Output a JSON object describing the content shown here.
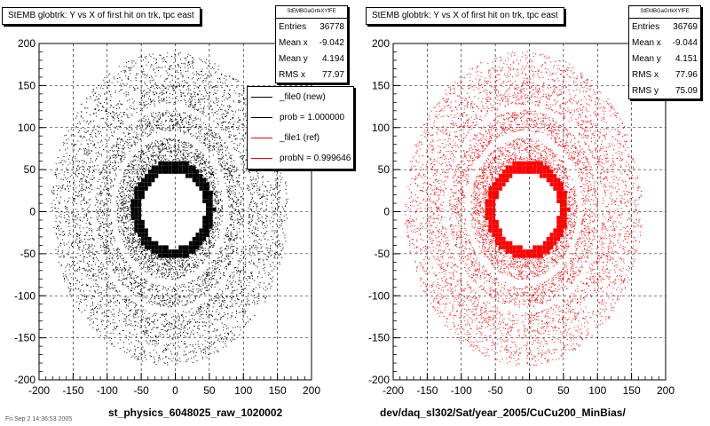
{
  "chart_data": [
    {
      "type": "scatter",
      "title": "StEMB globtrk: Y vs X of first hit on trk, tpc east",
      "xlabel": "st_physics_6048025_raw_1020002",
      "ylabel": "",
      "xlim": [
        -200,
        200
      ],
      "ylim": [
        -200,
        200
      ],
      "xticks": [
        "-200",
        "-150",
        "-100",
        "-50",
        "0",
        "50",
        "100",
        "150",
        "200"
      ],
      "yticks": [
        "200",
        "150",
        "100",
        "50",
        "0",
        "-50",
        "-100",
        "-150",
        "-200"
      ],
      "grid": true,
      "color": "#000000",
      "stats": {
        "header": "StEMBGaGrtkXYfFE",
        "rows": [
          {
            "label": "Entries",
            "value": "36778"
          },
          {
            "label": "Mean x",
            "value": "-9.042"
          },
          {
            "label": "Mean y",
            "value": "4.194"
          },
          {
            "label": "RMS x",
            "value": "77.97"
          }
        ]
      },
      "legend": [
        {
          "label": "_file0 (new)",
          "color": "#000000"
        },
        {
          "label": "prob = 1.000000",
          "color": "#000000"
        },
        {
          "label": "_file1 (ref)",
          "color": "#ff0000"
        },
        {
          "label": "probN = 0.999646",
          "color": "#ff0000"
        }
      ],
      "inner_ring": {
        "x_range": [
          -65,
          60
        ],
        "y_range": [
          -65,
          60
        ],
        "hole_radius": 45
      }
    },
    {
      "type": "scatter",
      "title": "StEMB globtrk: Y vs X of first hit on trk, tpc east",
      "xlabel": "dev/daq_sl302/Sat/year_2005/CuCu200_MinBias/",
      "ylabel": "",
      "xlim": [
        -200,
        200
      ],
      "ylim": [
        -200,
        200
      ],
      "xticks": [
        "-200",
        "-150",
        "-100",
        "-50",
        "0",
        "50",
        "100",
        "150",
        "200"
      ],
      "yticks": [
        "200",
        "150",
        "100",
        "50",
        "0",
        "-50",
        "-100",
        "-150",
        "-200"
      ],
      "grid": true,
      "color": "#ff0000",
      "stats": {
        "header": "StEMBGaGrtkXYfFE",
        "rows": [
          {
            "label": "Entries",
            "value": "36769"
          },
          {
            "label": "Mean x",
            "value": "-9.044"
          },
          {
            "label": "Mean y",
            "value": "4.151"
          },
          {
            "label": "RMS x",
            "value": "77.96"
          },
          {
            "label": "RMS y",
            "value": "75.09"
          }
        ]
      },
      "inner_ring": {
        "x_range": [
          -65,
          60
        ],
        "y_range": [
          -65,
          60
        ],
        "hole_radius": 45
      }
    }
  ],
  "footer_note": "Fri Sep 2 14:36:53 2005"
}
